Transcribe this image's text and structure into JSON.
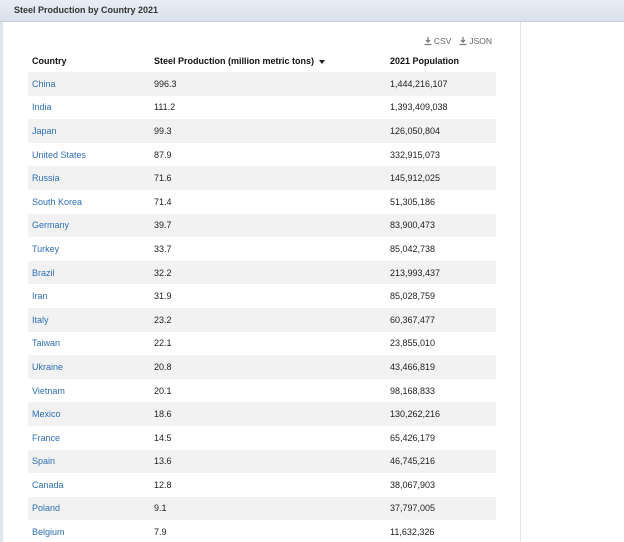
{
  "window": {
    "title": "Steel Production by Country 2021"
  },
  "downloads": [
    {
      "label": "CSV",
      "icon": "download-icon"
    },
    {
      "label": "JSON",
      "icon": "download-icon"
    }
  ],
  "table": {
    "columns": [
      {
        "label": "Country"
      },
      {
        "label": "Steel Production (million metric tons)",
        "sorted": "descending"
      },
      {
        "label": "2021 Population"
      }
    ],
    "rows": [
      {
        "country": "China",
        "steel": "996.3",
        "population": "1,444,216,107"
      },
      {
        "country": "India",
        "steel": "111.2",
        "population": "1,393,409,038"
      },
      {
        "country": "Japan",
        "steel": "99.3",
        "population": "126,050,804"
      },
      {
        "country": "United States",
        "steel": "87.9",
        "population": "332,915,073"
      },
      {
        "country": "Russia",
        "steel": "71.6",
        "population": "145,912,025"
      },
      {
        "country": "South Korea",
        "steel": "71.4",
        "population": "51,305,186"
      },
      {
        "country": "Germany",
        "steel": "39.7",
        "population": "83,900,473"
      },
      {
        "country": "Turkey",
        "steel": "33.7",
        "population": "85,042,738"
      },
      {
        "country": "Brazil",
        "steel": "32.2",
        "population": "213,993,437"
      },
      {
        "country": "Iran",
        "steel": "31.9",
        "population": "85,028,759"
      },
      {
        "country": "Italy",
        "steel": "23.2",
        "population": "60,367,477"
      },
      {
        "country": "Taiwan",
        "steel": "22.1",
        "population": "23,855,010"
      },
      {
        "country": "Ukraine",
        "steel": "20.8",
        "population": "43,466,819"
      },
      {
        "country": "Vietnam",
        "steel": "20.1",
        "population": "98,168,833"
      },
      {
        "country": "Mexico",
        "steel": "18.6",
        "population": "130,262,216"
      },
      {
        "country": "France",
        "steel": "14.5",
        "population": "65,426,179"
      },
      {
        "country": "Spain",
        "steel": "13.6",
        "population": "46,745,216"
      },
      {
        "country": "Canada",
        "steel": "12.8",
        "population": "38,067,903"
      },
      {
        "country": "Poland",
        "steel": "9.1",
        "population": "37,797,005"
      },
      {
        "country": "Belgium",
        "steel": "7.9",
        "population": "11,632,326"
      }
    ]
  },
  "colors": {
    "link": "#2e6fb5",
    "stripe": "#f2f2f2",
    "titlebar": "#dfe5ee"
  }
}
